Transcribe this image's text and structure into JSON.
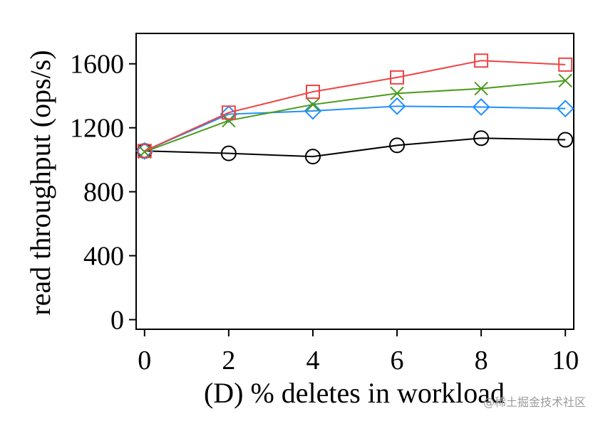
{
  "chart_data": {
    "type": "line",
    "xlabel": "(D) % deletes in workload",
    "ylabel": "read throughput (ops/s)",
    "xlim": [
      -0.2,
      10.2
    ],
    "ylim": [
      -60,
      1790
    ],
    "xticks": [
      0,
      2,
      4,
      6,
      8,
      10
    ],
    "yticks": [
      0,
      400,
      800,
      1200,
      1600
    ],
    "x": [
      0,
      2,
      4,
      6,
      8,
      10
    ],
    "grid": false,
    "legend": "none",
    "series": [
      {
        "color": "#000000",
        "marker": "circle",
        "values": [
          1055,
          1040,
          1020,
          1090,
          1135,
          1125
        ]
      },
      {
        "color": "#1f8fff",
        "marker": "diamond",
        "values": [
          1055,
          1285,
          1305,
          1335,
          1330,
          1320
        ]
      },
      {
        "color": "#4a9a1a",
        "marker": "x",
        "values": [
          1050,
          1245,
          1345,
          1415,
          1445,
          1495
        ]
      },
      {
        "color": "#ee4444",
        "marker": "square",
        "values": [
          1055,
          1295,
          1425,
          1515,
          1620,
          1595
        ]
      }
    ]
  },
  "watermark": "@稀土掘金技术社区"
}
